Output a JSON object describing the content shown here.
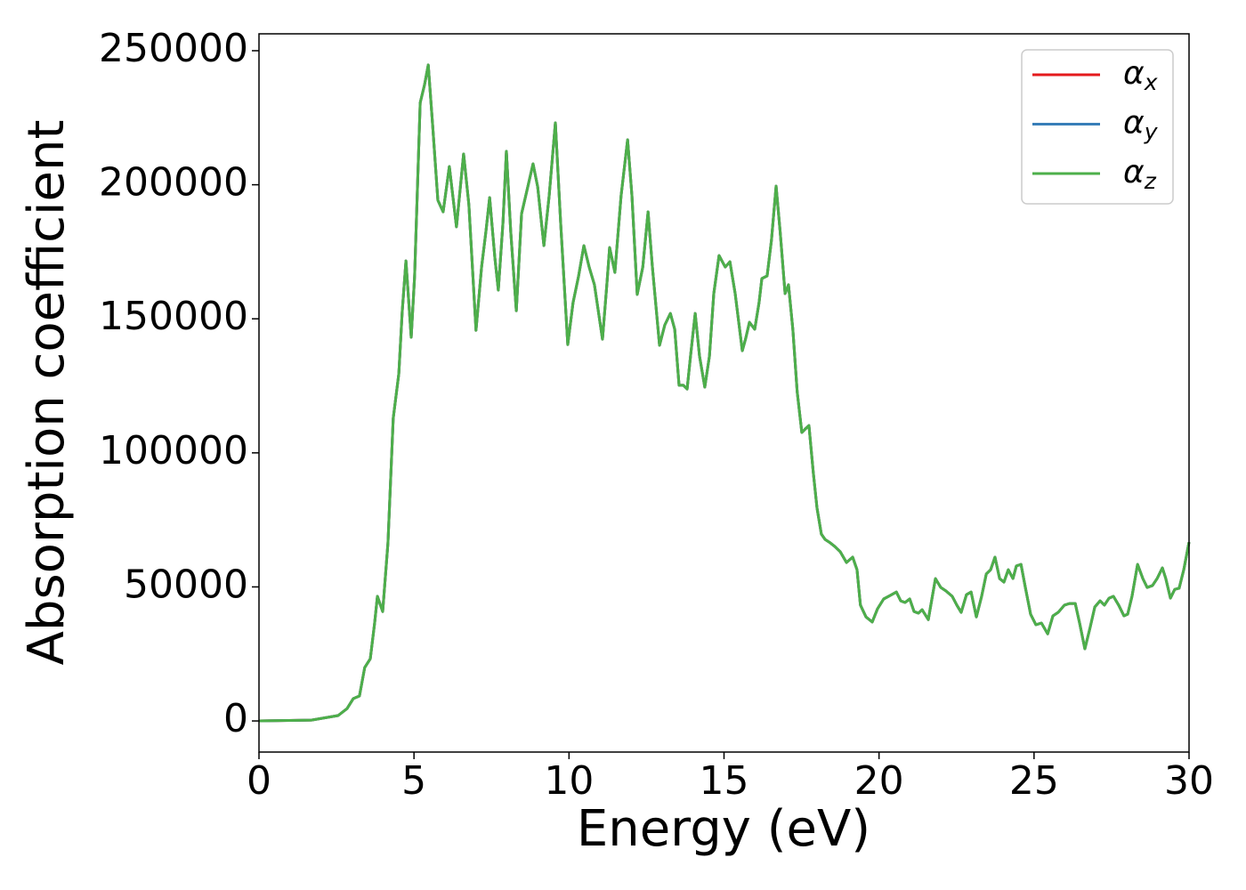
{
  "chart_data": {
    "type": "line",
    "xlabel": "Energy (eV)",
    "ylabel": "Absorption coefficient",
    "xlim": [
      0,
      30
    ],
    "xticks": [
      0,
      5,
      10,
      15,
      20,
      25,
      30
    ],
    "ylim": [
      -11600,
      256300
    ],
    "yticks": [
      0,
      50000,
      100000,
      150000,
      200000,
      250000
    ],
    "grid": false,
    "legend": "upper right",
    "x": [
      0,
      1.69,
      2.55,
      2.84,
      3.04,
      3.24,
      3.41,
      3.59,
      3.73,
      3.82,
      3.99,
      4.16,
      4.33,
      4.51,
      4.62,
      4.74,
      4.91,
      5.02,
      5.2,
      5.34,
      5.46,
      5.6,
      5.77,
      5.94,
      6.14,
      6.37,
      6.6,
      6.77,
      7.0,
      7.18,
      7.32,
      7.44,
      7.61,
      7.72,
      7.87,
      7.98,
      8.12,
      8.3,
      8.47,
      8.67,
      8.84,
      8.99,
      9.19,
      9.36,
      9.56,
      9.73,
      9.96,
      10.13,
      10.31,
      10.48,
      10.65,
      10.82,
      11.08,
      11.22,
      11.31,
      11.48,
      11.68,
      11.89,
      12.03,
      12.2,
      12.38,
      12.55,
      12.69,
      12.92,
      13.09,
      13.27,
      13.41,
      13.55,
      13.69,
      13.81,
      13.92,
      14.07,
      14.21,
      14.38,
      14.53,
      14.67,
      14.84,
      15.04,
      15.19,
      15.36,
      15.59,
      15.7,
      15.82,
      15.99,
      16.13,
      16.22,
      16.39,
      16.53,
      16.68,
      16.81,
      16.97,
      17.08,
      17.22,
      17.36,
      17.51,
      17.62,
      17.74,
      17.88,
      18.0,
      18.14,
      18.26,
      18.43,
      18.57,
      18.75,
      18.95,
      19.15,
      19.29,
      19.4,
      19.58,
      19.78,
      19.95,
      20.15,
      20.36,
      20.56,
      20.7,
      20.84,
      20.99,
      21.13,
      21.27,
      21.39,
      21.59,
      21.82,
      21.99,
      22.16,
      22.36,
      22.51,
      22.65,
      22.82,
      22.97,
      23.14,
      23.31,
      23.46,
      23.6,
      23.74,
      23.89,
      24.03,
      24.17,
      24.32,
      24.43,
      24.58,
      24.72,
      24.89,
      25.06,
      25.24,
      25.44,
      25.61,
      25.78,
      25.98,
      26.15,
      26.33,
      26.47,
      26.64,
      26.81,
      26.96,
      27.13,
      27.27,
      27.42,
      27.56,
      27.73,
      27.9,
      28.02,
      28.16,
      28.34,
      28.51,
      28.65,
      28.82,
      28.97,
      29.14,
      29.25,
      29.4,
      29.54,
      29.68,
      29.83,
      30.0
    ],
    "series": [
      {
        "name": "αx",
        "color": "#e41a1c",
        "values": [
          0,
          300,
          2000,
          4600,
          8300,
          9300,
          19900,
          23200,
          36500,
          46500,
          40800,
          66400,
          112900,
          129500,
          152700,
          171600,
          143100,
          166000,
          230600,
          237300,
          244700,
          222400,
          194200,
          189900,
          206800,
          184300,
          211500,
          192600,
          145700,
          169300,
          182600,
          195200,
          172600,
          160700,
          185900,
          212500,
          182600,
          153000,
          189200,
          199200,
          207800,
          199200,
          177300,
          195900,
          223100,
          185900,
          140400,
          156000,
          166000,
          177300,
          169300,
          162700,
          142400,
          162700,
          176600,
          167300,
          195900,
          216800,
          195900,
          159100,
          169300,
          189900,
          169300,
          140100,
          147700,
          152000,
          146100,
          125200,
          125200,
          123800,
          136100,
          152000,
          136100,
          124500,
          136100,
          159400,
          173600,
          169300,
          171300,
          159400,
          138100,
          142700,
          148700,
          146100,
          156000,
          165000,
          166000,
          179300,
          199500,
          182600,
          159400,
          162700,
          146100,
          122800,
          107600,
          108900,
          110200,
          92600,
          79400,
          69700,
          67700,
          66400,
          65100,
          63100,
          59100,
          61100,
          56400,
          43200,
          38800,
          36900,
          41800,
          45500,
          46800,
          48100,
          44800,
          44200,
          45500,
          40800,
          40200,
          41500,
          37800,
          53100,
          49800,
          48500,
          46500,
          43200,
          40500,
          47100,
          48100,
          38800,
          46500,
          54800,
          56400,
          61100,
          53100,
          51800,
          56400,
          53100,
          57800,
          58400,
          49800,
          39800,
          35900,
          36500,
          32500,
          39200,
          40500,
          43200,
          43800,
          43800,
          36500,
          26900,
          34900,
          42500,
          44800,
          43200,
          45800,
          46500,
          43200,
          39200,
          39800,
          46500,
          58400,
          53100,
          49800,
          50500,
          53100,
          57100,
          53100,
          45800,
          49100,
          49500,
          56400,
          66700
        ]
      },
      {
        "name": "αy",
        "color": "#377eb8",
        "values": [
          0,
          300,
          2000,
          4600,
          8300,
          9300,
          19900,
          23200,
          36500,
          46500,
          40800,
          66400,
          112900,
          129500,
          152700,
          171600,
          143100,
          166000,
          230600,
          237300,
          244700,
          222400,
          194200,
          189900,
          206800,
          184300,
          211500,
          192600,
          145700,
          169300,
          182600,
          195200,
          172600,
          160700,
          185900,
          212500,
          182600,
          153000,
          189200,
          199200,
          207800,
          199200,
          177300,
          195900,
          223100,
          185900,
          140400,
          156000,
          166000,
          177300,
          169300,
          162700,
          142400,
          162700,
          176600,
          167300,
          195900,
          216800,
          195900,
          159100,
          169300,
          189900,
          169300,
          140100,
          147700,
          152000,
          146100,
          125200,
          125200,
          123800,
          136100,
          152000,
          136100,
          124500,
          136100,
          159400,
          173600,
          169300,
          171300,
          159400,
          138100,
          142700,
          148700,
          146100,
          156000,
          165000,
          166000,
          179300,
          199500,
          182600,
          159400,
          162700,
          146100,
          122800,
          107600,
          108900,
          110200,
          92600,
          79400,
          69700,
          67700,
          66400,
          65100,
          63100,
          59100,
          61100,
          56400,
          43200,
          38800,
          36900,
          41800,
          45500,
          46800,
          48100,
          44800,
          44200,
          45500,
          40800,
          40200,
          41500,
          37800,
          53100,
          49800,
          48500,
          46500,
          43200,
          40500,
          47100,
          48100,
          38800,
          46500,
          54800,
          56400,
          61100,
          53100,
          51800,
          56400,
          53100,
          57800,
          58400,
          49800,
          39800,
          35900,
          36500,
          32500,
          39200,
          40500,
          43200,
          43800,
          43800,
          36500,
          26900,
          34900,
          42500,
          44800,
          43200,
          45800,
          46500,
          43200,
          39200,
          39800,
          46500,
          58400,
          53100,
          49800,
          50500,
          53100,
          57100,
          53100,
          45800,
          49100,
          49500,
          56400,
          66700
        ]
      },
      {
        "name": "αz",
        "color": "#4daf4a",
        "values": [
          0,
          300,
          2000,
          4600,
          8300,
          9300,
          19900,
          23200,
          36500,
          46500,
          40800,
          66400,
          112900,
          129500,
          152700,
          171600,
          143100,
          166000,
          230600,
          237300,
          244700,
          222400,
          194200,
          189900,
          206800,
          184300,
          211500,
          192600,
          145700,
          169300,
          182600,
          195200,
          172600,
          160700,
          185900,
          212500,
          182600,
          153000,
          189200,
          199200,
          207800,
          199200,
          177300,
          195900,
          223100,
          185900,
          140400,
          156000,
          166000,
          177300,
          169300,
          162700,
          142400,
          162700,
          176600,
          167300,
          195900,
          216800,
          195900,
          159100,
          169300,
          189900,
          169300,
          140100,
          147700,
          152000,
          146100,
          125200,
          125200,
          123800,
          136100,
          152000,
          136100,
          124500,
          136100,
          159400,
          173600,
          169300,
          171300,
          159400,
          138100,
          142700,
          148700,
          146100,
          156000,
          165000,
          166000,
          179300,
          199500,
          182600,
          159400,
          162700,
          146100,
          122800,
          107600,
          108900,
          110200,
          92600,
          79400,
          69700,
          67700,
          66400,
          65100,
          63100,
          59100,
          61100,
          56400,
          43200,
          38800,
          36900,
          41800,
          45500,
          46800,
          48100,
          44800,
          44200,
          45500,
          40800,
          40200,
          41500,
          37800,
          53100,
          49800,
          48500,
          46500,
          43200,
          40500,
          47100,
          48100,
          38800,
          46500,
          54800,
          56400,
          61100,
          53100,
          51800,
          56400,
          53100,
          57800,
          58400,
          49800,
          39800,
          35900,
          36500,
          32500,
          39200,
          40500,
          43200,
          43800,
          43800,
          36500,
          26900,
          34900,
          42500,
          44800,
          43200,
          45800,
          46500,
          43200,
          39200,
          39800,
          46500,
          58400,
          53100,
          49800,
          50500,
          53100,
          57100,
          53100,
          45800,
          49100,
          49500,
          56400,
          66700
        ]
      }
    ]
  }
}
